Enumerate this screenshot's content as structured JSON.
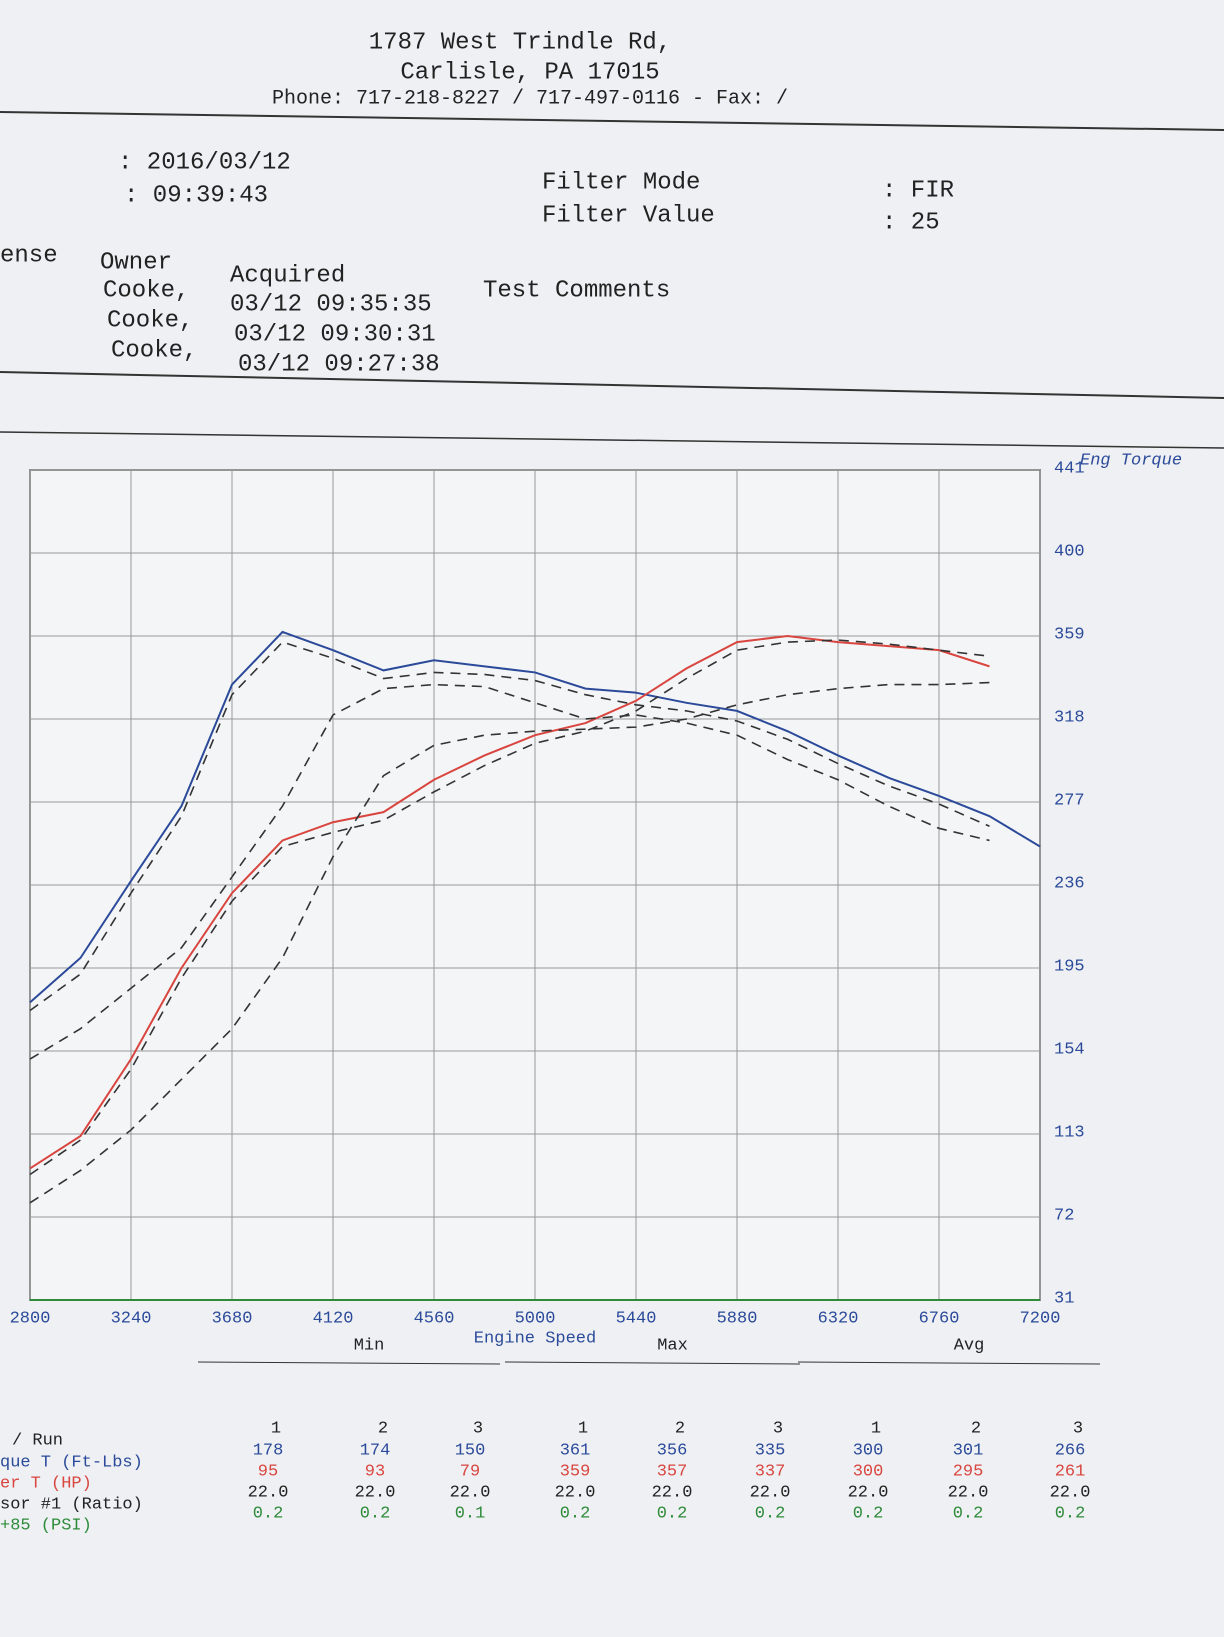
{
  "header": {
    "address": [
      "1787 West Trindle Rd,",
      "Carlisle, PA 17015",
      "Phone: 717-218-8227 / 717-497-0116 - Fax: /"
    ]
  },
  "info": {
    "date": ": 2016/03/12",
    "time": ": 09:39:43",
    "filter_mode_label": "Filter Mode",
    "filter_mode": ": FIR",
    "filter_value_label": "Filter Value",
    "filter_value": ": 25"
  },
  "runs": {
    "columns": [
      "ense",
      "Owner",
      "Acquired",
      "Test Comments"
    ],
    "rows": [
      [
        "Cooke,",
        "03/12 09:35:35"
      ],
      [
        "Cooke,",
        "03/12 09:30:31"
      ],
      [
        "Cooke,",
        "03/12 09:27:38"
      ]
    ]
  },
  "chart_data": {
    "type": "line",
    "x_label": "Engine Speed",
    "y_label": "Eng Torque",
    "x": [
      2800,
      3020,
      3240,
      3460,
      3680,
      3900,
      4120,
      4340,
      4560,
      4780,
      5000,
      5220,
      5440,
      5660,
      5880,
      6100,
      6320,
      6540,
      6760,
      6980,
      7200
    ],
    "xlim": [
      2800,
      7200
    ],
    "xticks": [
      2800,
      3240,
      3680,
      4120,
      4560,
      5000,
      5440,
      5880,
      6320,
      6760,
      7200
    ],
    "ylim": [
      31,
      441
    ],
    "yticks": [
      31,
      72,
      113,
      154,
      195,
      236,
      277,
      318,
      359,
      400,
      441
    ],
    "grid": true,
    "series": [
      {
        "color": "#2b4a9a",
        "style": "solid",
        "values": [
          178,
          200,
          238,
          275,
          335,
          361,
          352,
          342,
          347,
          344,
          341,
          333,
          331,
          326,
          322,
          312,
          300,
          289,
          280,
          270,
          255
        ]
      },
      {
        "color": "#d9453f",
        "style": "solid",
        "values": [
          96,
          112,
          150,
          195,
          232,
          258,
          267,
          272,
          288,
          300,
          310,
          316,
          327,
          343,
          356,
          359,
          356,
          354,
          352,
          344,
          null
        ]
      },
      {
        "color": "#333333",
        "style": "dashed",
        "values": [
          174,
          192,
          232,
          270,
          330,
          356,
          348,
          338,
          341,
          340,
          337,
          330,
          325,
          322,
          317,
          308,
          296,
          285,
          276,
          265,
          null
        ]
      },
      {
        "color": "#333333",
        "style": "dashed",
        "values": [
          93,
          110,
          145,
          190,
          228,
          255,
          262,
          268,
          282,
          295,
          306,
          312,
          322,
          338,
          352,
          356,
          357,
          355,
          352,
          349,
          null
        ]
      },
      {
        "color": "#333333",
        "style": "dashed",
        "values": [
          150,
          165,
          185,
          205,
          240,
          275,
          320,
          333,
          335,
          334,
          326,
          318,
          320,
          316,
          310,
          298,
          288,
          275,
          264,
          258,
          null
        ]
      },
      {
        "color": "#333333",
        "style": "dashed",
        "values": [
          79,
          95,
          115,
          140,
          165,
          200,
          250,
          290,
          305,
          310,
          312,
          313,
          314,
          318,
          325,
          330,
          333,
          335,
          335,
          336,
          null
        ]
      }
    ]
  },
  "summary": {
    "groups": [
      "Min",
      "Max",
      "Avg"
    ],
    "run_label": "/ Run",
    "runs": [
      "1",
      "2",
      "3",
      "1",
      "2",
      "3",
      "1",
      "2",
      "3"
    ],
    "rows": [
      {
        "label": "que T (Ft-Lbs)",
        "color": "#2b4a9a",
        "cells": [
          "178",
          "174",
          "150",
          "361",
          "356",
          "335",
          "300",
          "301",
          "266"
        ]
      },
      {
        "label": "er T (HP)",
        "color": "#d9453f",
        "cells": [
          "95",
          "93",
          "79",
          "359",
          "357",
          "337",
          "300",
          "295",
          "261"
        ]
      },
      {
        "label": "sor #1 (Ratio)",
        "color": "#222222",
        "cells": [
          "22.0",
          "22.0",
          "22.0",
          "22.0",
          "22.0",
          "22.0",
          "22.0",
          "22.0",
          "22.0"
        ]
      },
      {
        "label": "+85 (PSI)",
        "color": "#2e8b3a",
        "cells": [
          "0.2",
          "0.2",
          "0.1",
          "0.2",
          "0.2",
          "0.2",
          "0.2",
          "0.2",
          "0.2"
        ]
      }
    ]
  }
}
